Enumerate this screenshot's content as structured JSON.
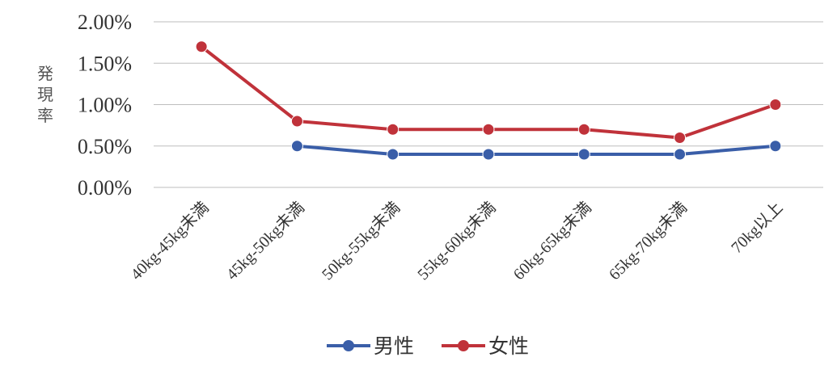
{
  "chart_data": {
    "type": "line",
    "categories": [
      "40kg-45kg未満",
      "45kg-50kg未満",
      "50kg-55kg未満",
      "55kg-60kg未満",
      "60kg-65kg未満",
      "65kg-70kg未満",
      "70kg以上"
    ],
    "series": [
      {
        "name": "男性",
        "color": "#3a5ea8",
        "values": [
          null,
          0.5,
          0.4,
          0.4,
          0.4,
          0.4,
          0.5
        ]
      },
      {
        "name": "女性",
        "color": "#c0323a",
        "values": [
          1.7,
          0.8,
          0.7,
          0.7,
          0.7,
          0.6,
          1.0
        ]
      }
    ],
    "yticks": [
      "0.00%",
      "0.50%",
      "1.00%",
      "1.50%",
      "2.00%"
    ],
    "ylabel": "発現率",
    "ylim": [
      0,
      2
    ],
    "grid": true,
    "legend_position": "bottom"
  }
}
